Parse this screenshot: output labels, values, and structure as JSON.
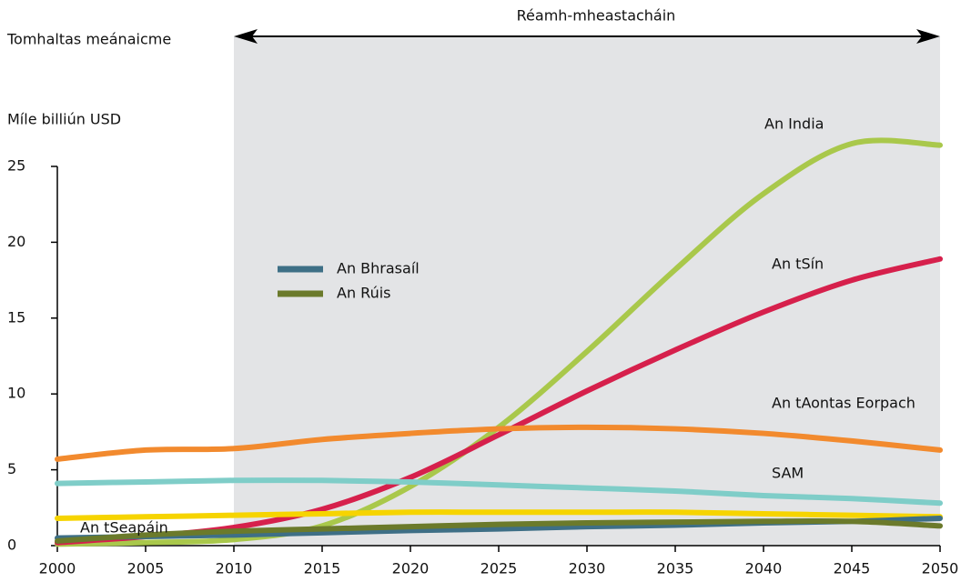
{
  "chart_data": {
    "type": "line",
    "title": "Tomhaltas meánaicme",
    "y_label": "Míle billiún USD",
    "forecast_label": "Réamh-mheastacháin",
    "forecast_range": [
      2010,
      2050
    ],
    "x": [
      2000,
      2005,
      2010,
      2015,
      2020,
      2025,
      2030,
      2035,
      2040,
      2045,
      2050
    ],
    "xlim": [
      2000,
      2050
    ],
    "xticks": [
      2000,
      2005,
      2010,
      2015,
      2020,
      2025,
      2030,
      2035,
      2040,
      2045,
      2050
    ],
    "ylim": [
      0,
      25
    ],
    "yticks": [
      0,
      5,
      10,
      15,
      20,
      25
    ],
    "series": [
      {
        "name": "An India",
        "color": "#a9c84b",
        "values": [
          0.1,
          0.2,
          0.4,
          1.3,
          3.9,
          7.8,
          12.8,
          18.2,
          23.2,
          26.5,
          26.4
        ]
      },
      {
        "name": "An tSín",
        "color": "#d6204c",
        "values": [
          0.2,
          0.6,
          1.2,
          2.4,
          4.5,
          7.3,
          10.2,
          12.9,
          15.4,
          17.5,
          18.9
        ]
      },
      {
        "name": "An tAontas Eorpach",
        "color": "#f28a2e",
        "values": [
          5.7,
          6.3,
          6.4,
          7.0,
          7.4,
          7.7,
          7.8,
          7.7,
          7.4,
          6.9,
          6.3
        ]
      },
      {
        "name": "SAM",
        "color": "#7fcdc8",
        "values": [
          4.1,
          4.2,
          4.3,
          4.3,
          4.2,
          4.0,
          3.8,
          3.6,
          3.3,
          3.1,
          2.8
        ]
      },
      {
        "name": "An tSeapáin",
        "color": "#f6d400",
        "values": [
          1.8,
          1.9,
          2.0,
          2.1,
          2.2,
          2.2,
          2.2,
          2.2,
          2.1,
          2.0,
          1.9
        ]
      },
      {
        "name": "An Bhrasaíl",
        "color": "#3e6f86",
        "in_legend": true,
        "values": [
          0.5,
          0.6,
          0.7,
          0.85,
          1.0,
          1.1,
          1.25,
          1.35,
          1.5,
          1.6,
          1.8
        ]
      },
      {
        "name": "An Rúis",
        "color": "#6b7a2b",
        "in_legend": true,
        "values": [
          0.3,
          0.7,
          0.95,
          1.1,
          1.25,
          1.4,
          1.5,
          1.55,
          1.6,
          1.6,
          1.3
        ]
      }
    ]
  }
}
